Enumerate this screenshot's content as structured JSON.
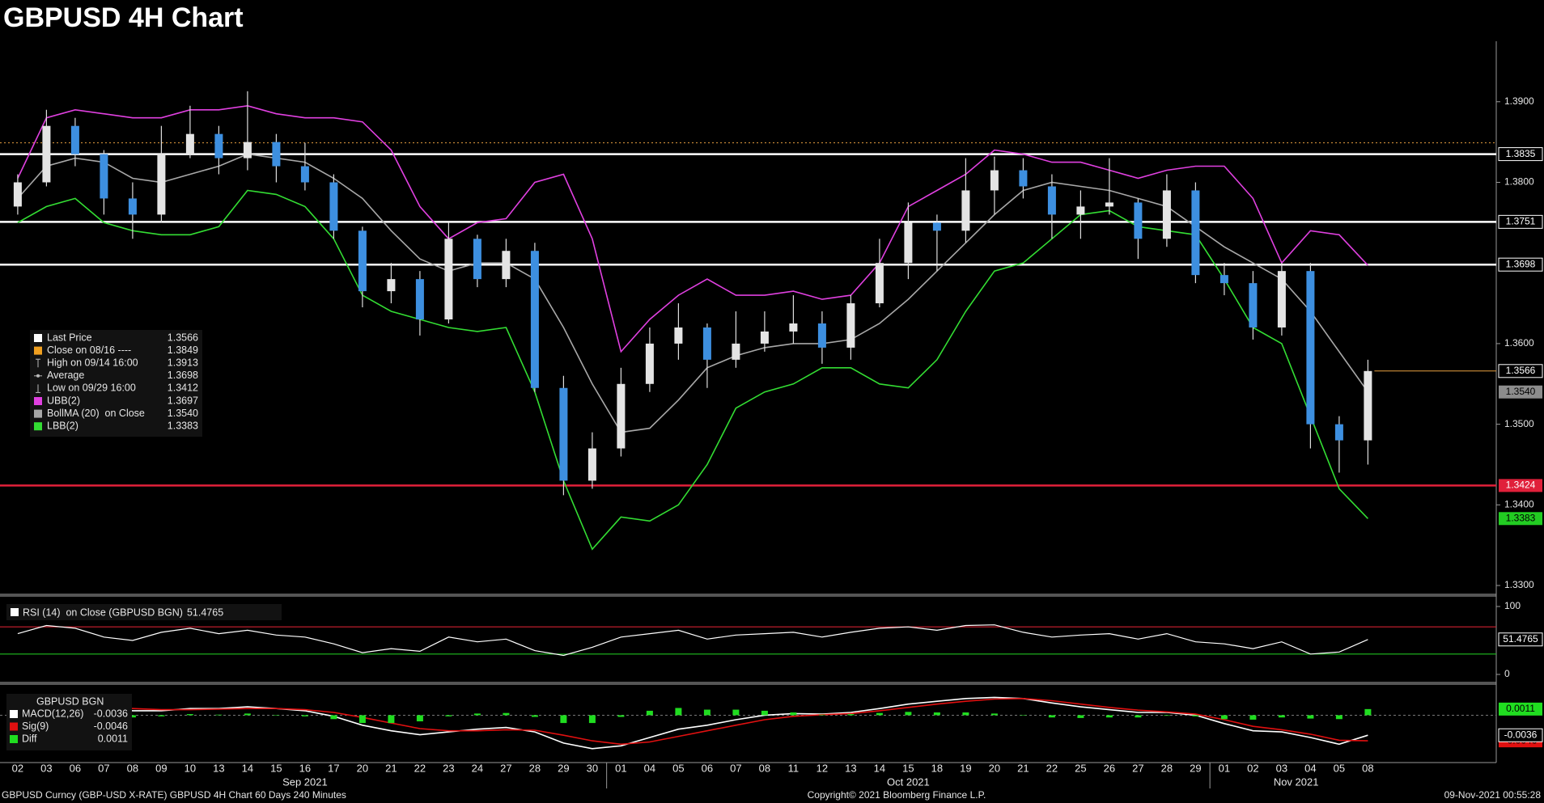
{
  "chart_data": [
    {
      "type": "candlestick",
      "title": "GBPUSD 4H Chart",
      "x": [
        "02",
        "03",
        "06",
        "07",
        "08",
        "09",
        "10",
        "13",
        "14",
        "15",
        "16",
        "17",
        "20",
        "21",
        "22",
        "23",
        "24",
        "27",
        "28",
        "29",
        "30",
        "01",
        "04",
        "05",
        "06",
        "07",
        "08",
        "11",
        "12",
        "13",
        "14",
        "15",
        "18",
        "19",
        "20",
        "21",
        "22",
        "25",
        "26",
        "27",
        "28",
        "29",
        "01",
        "02",
        "03",
        "04",
        "05",
        "08"
      ],
      "months": [
        "Sep 2021",
        "Oct 2021",
        "Nov 2021"
      ],
      "open": [
        1.377,
        1.38,
        1.387,
        1.3835,
        1.378,
        1.376,
        1.3835,
        1.386,
        1.383,
        1.385,
        1.382,
        1.38,
        1.374,
        1.3665,
        1.368,
        1.363,
        1.373,
        1.368,
        1.3715,
        1.3545,
        1.343,
        1.347,
        1.355,
        1.36,
        1.362,
        1.358,
        1.36,
        1.3615,
        1.3625,
        1.3595,
        1.365,
        1.37,
        1.375,
        1.374,
        1.379,
        1.3815,
        1.3795,
        1.376,
        1.377,
        1.3775,
        1.373,
        1.379,
        1.3685,
        1.3675,
        1.362,
        1.369,
        1.35,
        1.348
      ],
      "high": [
        1.381,
        1.389,
        1.388,
        1.384,
        1.38,
        1.387,
        1.3895,
        1.387,
        1.3913,
        1.386,
        1.3849,
        1.381,
        1.3745,
        1.37,
        1.369,
        1.375,
        1.3735,
        1.373,
        1.3725,
        1.356,
        1.349,
        1.357,
        1.362,
        1.365,
        1.3625,
        1.364,
        1.364,
        1.366,
        1.364,
        1.366,
        1.373,
        1.3775,
        1.376,
        1.383,
        1.3832,
        1.383,
        1.381,
        1.379,
        1.383,
        1.378,
        1.381,
        1.38,
        1.37,
        1.369,
        1.37,
        1.37,
        1.351,
        1.358
      ],
      "low": [
        1.376,
        1.3795,
        1.382,
        1.376,
        1.373,
        1.375,
        1.383,
        1.381,
        1.3815,
        1.38,
        1.379,
        1.373,
        1.3645,
        1.365,
        1.361,
        1.3625,
        1.367,
        1.367,
        1.354,
        1.3412,
        1.342,
        1.346,
        1.354,
        1.358,
        1.3545,
        1.357,
        1.359,
        1.36,
        1.3575,
        1.358,
        1.3645,
        1.368,
        1.369,
        1.3725,
        1.376,
        1.378,
        1.373,
        1.373,
        1.376,
        1.3705,
        1.372,
        1.3675,
        1.366,
        1.3605,
        1.361,
        1.347,
        1.344,
        1.345
      ],
      "close": [
        1.38,
        1.387,
        1.3835,
        1.378,
        1.376,
        1.3835,
        1.386,
        1.383,
        1.385,
        1.382,
        1.38,
        1.374,
        1.3665,
        1.368,
        1.363,
        1.373,
        1.368,
        1.3715,
        1.3545,
        1.343,
        1.347,
        1.355,
        1.36,
        1.362,
        1.358,
        1.36,
        1.3615,
        1.3625,
        1.3595,
        1.365,
        1.37,
        1.375,
        1.374,
        1.379,
        1.3815,
        1.3795,
        1.376,
        1.377,
        1.3775,
        1.373,
        1.379,
        1.3685,
        1.3675,
        1.362,
        1.369,
        1.35,
        1.348,
        1.3566
      ],
      "up_color": "#e4e4e4",
      "down_color": "#3d8fe0",
      "series": [
        {
          "color": "#e040e0",
          "values": [
            1.3805,
            1.388,
            1.389,
            1.3885,
            1.388,
            1.388,
            1.389,
            1.389,
            1.3895,
            1.3885,
            1.388,
            1.388,
            1.3875,
            1.384,
            1.377,
            1.373,
            1.375,
            1.3755,
            1.38,
            1.381,
            1.373,
            1.359,
            1.363,
            1.366,
            1.368,
            1.366,
            1.366,
            1.3665,
            1.3655,
            1.366,
            1.37,
            1.377,
            1.379,
            1.381,
            1.384,
            1.3835,
            1.3825,
            1.3825,
            1.3815,
            1.3805,
            1.3815,
            1.382,
            1.382,
            1.378,
            1.37,
            1.374,
            1.3735,
            1.3697
          ]
        },
        {
          "color": "#a8a8a8",
          "values": [
            1.378,
            1.382,
            1.383,
            1.3825,
            1.3805,
            1.38,
            1.381,
            1.382,
            1.3835,
            1.383,
            1.3825,
            1.3805,
            1.378,
            1.374,
            1.3705,
            1.369,
            1.37,
            1.37,
            1.368,
            1.362,
            1.355,
            1.349,
            1.3495,
            1.353,
            1.357,
            1.3585,
            1.3595,
            1.36,
            1.36,
            1.3605,
            1.3625,
            1.3655,
            1.369,
            1.3725,
            1.376,
            1.379,
            1.38,
            1.3795,
            1.379,
            1.378,
            1.377,
            1.3745,
            1.372,
            1.37,
            1.368,
            1.364,
            1.359,
            1.354
          ]
        },
        {
          "color": "#33dd33",
          "values": [
            1.375,
            1.377,
            1.378,
            1.375,
            1.374,
            1.3735,
            1.3735,
            1.3745,
            1.379,
            1.3785,
            1.377,
            1.373,
            1.366,
            1.364,
            1.363,
            1.362,
            1.3615,
            1.362,
            1.354,
            1.343,
            1.3345,
            1.3385,
            1.338,
            1.34,
            1.345,
            1.352,
            1.354,
            1.355,
            1.357,
            1.357,
            1.355,
            1.3545,
            1.358,
            1.364,
            1.369,
            1.37,
            1.373,
            1.376,
            1.3765,
            1.3745,
            1.374,
            1.3735,
            1.368,
            1.362,
            1.36,
            1.351,
            1.342,
            1.3383
          ]
        }
      ],
      "ylim": [
        1.329,
        1.3975
      ],
      "yticks": [
        {
          "value": 1.39,
          "label": "1.3900"
        },
        {
          "value": 1.38,
          "label": "1.3800"
        },
        {
          "value": 1.36,
          "label": "1.3600"
        },
        {
          "value": 1.35,
          "label": "1.3500"
        },
        {
          "value": 1.34,
          "label": "1.3400"
        },
        {
          "value": 1.33,
          "label": "1.3300"
        }
      ],
      "levels": [
        {
          "value": 1.3849,
          "color": "#e8a040",
          "dash": true
        },
        {
          "value": 1.3835,
          "label": "1.3835",
          "color": "#ffffff"
        },
        {
          "value": 1.3751,
          "label": "1.3751",
          "color": "#ffffff"
        },
        {
          "value": 1.3698,
          "label": "1.3698",
          "color": "#ffffff"
        },
        {
          "value": 1.3424,
          "label": "1.3424",
          "color": "#e0203a"
        }
      ],
      "last_price": {
        "value": 1.3566,
        "label": "1.3566",
        "color": "#e8a040"
      },
      "band_labels": [
        {
          "value": 1.354,
          "label": "1.3540",
          "color": "#8c8c8c"
        },
        {
          "value": 1.3383,
          "label": "1.3383",
          "color": "#22cc22"
        }
      ],
      "legend": [
        {
          "label": "Last Price",
          "value": "1.3566",
          "marker": "square",
          "color": "#ffffff"
        },
        {
          "label": "Close on 08/16 ----",
          "value": "1.3849",
          "marker": "square",
          "color": "#f0a020"
        },
        {
          "label": "High on 09/14 16:00",
          "value": "1.3913",
          "marker": "high",
          "color": "#bbbbbb"
        },
        {
          "label": "Average",
          "value": "1.3698",
          "marker": "average",
          "color": "#bbbbbb"
        },
        {
          "label": "Low on 09/29 16:00",
          "value": "1.3412",
          "marker": "low",
          "color": "#bbbbbb"
        },
        {
          "label": "UBB(2)",
          "value": "1.3697",
          "marker": "square",
          "color": "#e040e0"
        },
        {
          "label": "BollMA (20)  on Close",
          "value": "1.3540",
          "marker": "square",
          "color": "#a8a8a8"
        },
        {
          "label": "LBB(2)",
          "value": "1.3383",
          "marker": "square",
          "color": "#33dd33"
        }
      ]
    },
    {
      "type": "line",
      "title": "RSI (14)  on Close (GBPUSD BGN)",
      "color": "#ffffff",
      "values": [
        60,
        72,
        68,
        55,
        50,
        62,
        68,
        60,
        65,
        58,
        55,
        45,
        32,
        38,
        34,
        55,
        48,
        52,
        35,
        28,
        40,
        55,
        60,
        65,
        52,
        58,
        60,
        62,
        55,
        62,
        68,
        70,
        65,
        72,
        73,
        62,
        55,
        58,
        60,
        52,
        60,
        48,
        45,
        38,
        48,
        30,
        33,
        51.4765
      ],
      "ylim": [
        0,
        100
      ],
      "yticks": [
        100,
        0
      ],
      "levels": [
        {
          "value": 70,
          "color": "#d02030"
        },
        {
          "value": 30,
          "color": "#20c020"
        }
      ]
    },
    {
      "type": "macd",
      "title": "GBPUSD BGN",
      "series": [
        {
          "name": "MACD(12,26)",
          "color": "#ffffff",
          "values": [
            0.0005,
            0.0015,
            0.002,
            0.0015,
            0.0008,
            0.0008,
            0.0012,
            0.0012,
            0.0015,
            0.0012,
            0.0008,
            -0.0002,
            -0.0018,
            -0.0028,
            -0.0035,
            -0.003,
            -0.0025,
            -0.0022,
            -0.003,
            -0.005,
            -0.006,
            -0.0055,
            -0.004,
            -0.0025,
            -0.0018,
            -0.0008,
            0,
            0.0003,
            0.0002,
            0.0005,
            0.0012,
            0.002,
            0.0025,
            0.003,
            0.0032,
            0.003,
            0.0022,
            0.0015,
            0.001,
            0.0005,
            0.0005,
            0,
            -0.0015,
            -0.0028,
            -0.003,
            -0.004,
            -0.0052,
            -0.0036
          ]
        },
        {
          "name": "Sig(9)",
          "color": "#e01010",
          "values": [
            0,
            0.0006,
            0.0012,
            0.0014,
            0.0012,
            0.001,
            0.001,
            0.0011,
            0.0012,
            0.0012,
            0.001,
            0.0005,
            -0.0004,
            -0.0014,
            -0.0024,
            -0.0028,
            -0.0028,
            -0.0026,
            -0.0027,
            -0.0036,
            -0.0046,
            -0.0052,
            -0.0048,
            -0.0038,
            -0.0028,
            -0.0018,
            -0.0008,
            -0.0002,
            0.0001,
            0.0003,
            0.0008,
            0.0014,
            0.002,
            0.0025,
            0.0029,
            0.003,
            0.0026,
            0.002,
            0.0014,
            0.0009,
            0.0006,
            0.0002,
            -0.0008,
            -0.002,
            -0.0026,
            -0.0034,
            -0.0045,
            -0.0046
          ]
        },
        {
          "name": "Diff",
          "color": "#20dd20",
          "kind": "bar",
          "values": [
            0.0005,
            0.0009,
            0.0008,
            0.0001,
            -0.0004,
            -0.0002,
            0.0002,
            0.0001,
            0.0003,
            0,
            -0.0002,
            -0.0007,
            -0.0014,
            -0.0014,
            -0.0011,
            -0.0002,
            0.0003,
            0.0004,
            -0.0003,
            -0.0014,
            -0.0014,
            -0.0003,
            0.0008,
            0.0013,
            0.001,
            0.001,
            0.0008,
            0.0005,
            0.0001,
            0.0002,
            0.0004,
            0.0006,
            0.0005,
            0.0005,
            0.0003,
            0,
            -0.0004,
            -0.0005,
            -0.0004,
            -0.0004,
            -0.0001,
            -0.0002,
            -0.0007,
            -0.0008,
            -0.0004,
            -0.0006,
            -0.0007,
            0.0011
          ]
        }
      ],
      "ylim": [
        -0.0085,
        0.005
      ]
    }
  ],
  "footer": {
    "left": "GBPUSD Curncy (GBP-USD X-RATE) GBPUSD 4H Chart 60 Days 240 Minutes",
    "center": "Copyright© 2021 Bloomberg Finance L.P.",
    "right": "09-Nov-2021 00:55:28"
  }
}
